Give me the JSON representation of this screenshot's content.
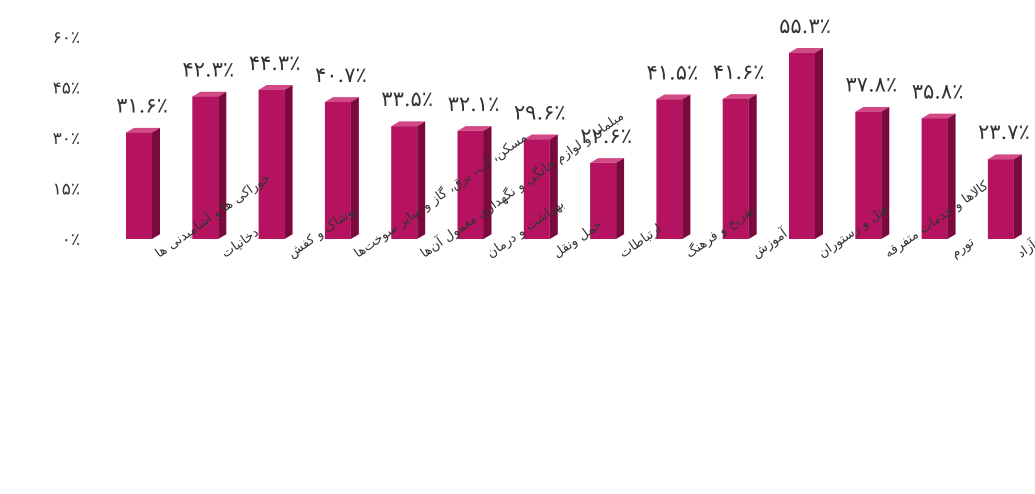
{
  "chart_data": {
    "type": "bar",
    "title": "",
    "xlabel": "",
    "ylabel": "",
    "ylim": [
      0,
      60
    ],
    "y_ticks": [
      0,
      15,
      30,
      45,
      60
    ],
    "y_tick_labels": [
      "۰٪",
      "۱۵٪",
      "۳۰٪",
      "۴۵٪",
      "۶۰٪"
    ],
    "grid": false,
    "legend": "none",
    "bar_style": "3d",
    "colors": {
      "front": "#b5135f",
      "side": "#7a0a3e",
      "top": "#d14a86"
    },
    "categories": [
      "خوراکی ها و آشامیدنی ها",
      "دخانیات",
      "پوشاک و کفش",
      "مسکن، آب، برق، گاز و سایر سوخت‌ها",
      "مبلمان و لوازم خانگی و نگهداری معمول آن‌ها",
      "بهداشت و درمان",
      "حمل ونقل",
      "ارتباطات",
      "تفریح و فرهنگ",
      "آموزش",
      "هتل و رستوران",
      "کالاها و خدمات متفرقه",
      "تورم",
      "دلار آزاد"
    ],
    "values": [
      31.6,
      42.3,
      44.3,
      40.7,
      33.5,
      32.1,
      29.6,
      22.6,
      41.5,
      41.6,
      55.3,
      37.8,
      35.8,
      23.7
    ],
    "value_labels": [
      "۳۱.۶٪",
      "۴۲.۳٪",
      "۴۴.۳٪",
      "۴۰.۷٪",
      "۳۳.۵٪",
      "۳۲.۱٪",
      "۲۹.۶٪",
      "۲۲.۶٪",
      "۴۱.۵٪",
      "۴۱.۶٪",
      "۵۵.۳٪",
      "۳۷.۸٪",
      "۳۵.۸٪",
      "۲۳.۷٪"
    ]
  }
}
